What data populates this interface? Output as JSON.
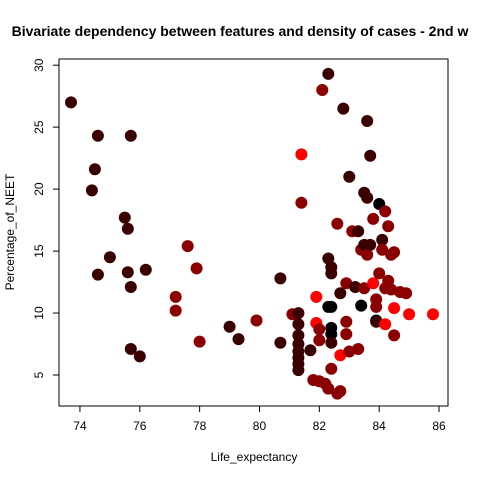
{
  "chart_data": {
    "type": "scatter",
    "title": "Bivariate dependency between features and density of cases -  2nd w",
    "xlabel": "Life_expectancy",
    "ylabel": "Percentage_of_NEET",
    "xlim": [
      73.3,
      86.3
    ],
    "ylim": [
      2.5,
      30.5
    ],
    "x_ticks": [
      "74",
      "76",
      "78",
      "80",
      "82",
      "84",
      "86"
    ],
    "y_ticks": [
      "5",
      "10",
      "15",
      "20",
      "25",
      "30"
    ],
    "grid": false,
    "legend": "none",
    "colors": {
      "dark": "#3a0000",
      "mid": "#8b0000",
      "bright": "#ff0000",
      "black": "#000000"
    },
    "points": [
      {
        "x": 73.7,
        "y": 27.0,
        "c": "dark"
      },
      {
        "x": 74.6,
        "y": 24.3,
        "c": "dark"
      },
      {
        "x": 74.5,
        "y": 21.6,
        "c": "dark"
      },
      {
        "x": 74.4,
        "y": 19.9,
        "c": "dark"
      },
      {
        "x": 74.6,
        "y": 13.1,
        "c": "dark"
      },
      {
        "x": 75.0,
        "y": 14.5,
        "c": "dark"
      },
      {
        "x": 75.5,
        "y": 17.7,
        "c": "dark"
      },
      {
        "x": 75.6,
        "y": 16.8,
        "c": "dark"
      },
      {
        "x": 75.7,
        "y": 24.3,
        "c": "dark"
      },
      {
        "x": 75.6,
        "y": 13.3,
        "c": "dark"
      },
      {
        "x": 75.7,
        "y": 12.1,
        "c": "dark"
      },
      {
        "x": 76.2,
        "y": 13.5,
        "c": "dark"
      },
      {
        "x": 75.7,
        "y": 7.1,
        "c": "dark"
      },
      {
        "x": 76.0,
        "y": 6.5,
        "c": "dark"
      },
      {
        "x": 77.2,
        "y": 11.3,
        "c": "mid"
      },
      {
        "x": 77.2,
        "y": 10.2,
        "c": "mid"
      },
      {
        "x": 77.6,
        "y": 15.4,
        "c": "mid"
      },
      {
        "x": 77.9,
        "y": 13.6,
        "c": "mid"
      },
      {
        "x": 78.0,
        "y": 7.7,
        "c": "mid"
      },
      {
        "x": 79.0,
        "y": 8.9,
        "c": "dark"
      },
      {
        "x": 79.3,
        "y": 7.9,
        "c": "dark"
      },
      {
        "x": 79.9,
        "y": 9.4,
        "c": "mid"
      },
      {
        "x": 80.7,
        "y": 12.8,
        "c": "dark"
      },
      {
        "x": 80.7,
        "y": 7.6,
        "c": "dark"
      },
      {
        "x": 81.1,
        "y": 9.9,
        "c": "mid"
      },
      {
        "x": 81.3,
        "y": 10.0,
        "c": "dark"
      },
      {
        "x": 81.3,
        "y": 9.1,
        "c": "dark"
      },
      {
        "x": 81.3,
        "y": 8.2,
        "c": "dark"
      },
      {
        "x": 81.3,
        "y": 7.5,
        "c": "dark"
      },
      {
        "x": 81.3,
        "y": 6.9,
        "c": "dark"
      },
      {
        "x": 81.3,
        "y": 6.4,
        "c": "dark"
      },
      {
        "x": 81.3,
        "y": 5.9,
        "c": "dark"
      },
      {
        "x": 81.3,
        "y": 5.4,
        "c": "dark"
      },
      {
        "x": 81.4,
        "y": 22.8,
        "c": "bright"
      },
      {
        "x": 81.4,
        "y": 18.9,
        "c": "mid"
      },
      {
        "x": 81.7,
        "y": 7.0,
        "c": "dark"
      },
      {
        "x": 81.8,
        "y": 4.6,
        "c": "mid"
      },
      {
        "x": 81.9,
        "y": 11.3,
        "c": "bright"
      },
      {
        "x": 81.9,
        "y": 9.2,
        "c": "bright"
      },
      {
        "x": 82.0,
        "y": 8.7,
        "c": "mid"
      },
      {
        "x": 82.0,
        "y": 7.8,
        "c": "mid"
      },
      {
        "x": 82.0,
        "y": 4.5,
        "c": "mid"
      },
      {
        "x": 82.1,
        "y": 28.0,
        "c": "mid"
      },
      {
        "x": 82.2,
        "y": 4.3,
        "c": "mid"
      },
      {
        "x": 82.3,
        "y": 29.3,
        "c": "dark"
      },
      {
        "x": 82.3,
        "y": 14.4,
        "c": "dark"
      },
      {
        "x": 82.3,
        "y": 10.5,
        "c": "black"
      },
      {
        "x": 82.3,
        "y": 3.9,
        "c": "mid"
      },
      {
        "x": 82.4,
        "y": 13.7,
        "c": "dark"
      },
      {
        "x": 82.4,
        "y": 13.2,
        "c": "dark"
      },
      {
        "x": 82.4,
        "y": 10.5,
        "c": "black"
      },
      {
        "x": 82.4,
        "y": 8.8,
        "c": "black"
      },
      {
        "x": 82.4,
        "y": 8.3,
        "c": "black"
      },
      {
        "x": 82.4,
        "y": 7.6,
        "c": "dark"
      },
      {
        "x": 82.4,
        "y": 5.5,
        "c": "mid"
      },
      {
        "x": 82.6,
        "y": 17.2,
        "c": "mid"
      },
      {
        "x": 82.6,
        "y": 3.5,
        "c": "mid"
      },
      {
        "x": 82.7,
        "y": 11.6,
        "c": "dark"
      },
      {
        "x": 82.7,
        "y": 6.6,
        "c": "bright"
      },
      {
        "x": 82.7,
        "y": 3.7,
        "c": "mid"
      },
      {
        "x": 82.8,
        "y": 26.5,
        "c": "dark"
      },
      {
        "x": 82.9,
        "y": 12.4,
        "c": "mid"
      },
      {
        "x": 82.9,
        "y": 9.3,
        "c": "mid"
      },
      {
        "x": 82.9,
        "y": 8.3,
        "c": "mid"
      },
      {
        "x": 83.0,
        "y": 21.0,
        "c": "dark"
      },
      {
        "x": 83.0,
        "y": 6.9,
        "c": "mid"
      },
      {
        "x": 83.1,
        "y": 16.6,
        "c": "mid"
      },
      {
        "x": 83.2,
        "y": 12.1,
        "c": "dark"
      },
      {
        "x": 83.3,
        "y": 16.6,
        "c": "dark"
      },
      {
        "x": 83.3,
        "y": 7.1,
        "c": "mid"
      },
      {
        "x": 83.4,
        "y": 15.1,
        "c": "mid"
      },
      {
        "x": 83.4,
        "y": 10.6,
        "c": "black"
      },
      {
        "x": 83.5,
        "y": 19.7,
        "c": "dark"
      },
      {
        "x": 83.5,
        "y": 15.5,
        "c": "dark"
      },
      {
        "x": 83.5,
        "y": 12.0,
        "c": "mid"
      },
      {
        "x": 83.6,
        "y": 25.5,
        "c": "dark"
      },
      {
        "x": 83.6,
        "y": 19.3,
        "c": "dark"
      },
      {
        "x": 83.6,
        "y": 14.7,
        "c": "mid"
      },
      {
        "x": 83.7,
        "y": 22.7,
        "c": "dark"
      },
      {
        "x": 83.7,
        "y": 15.5,
        "c": "dark"
      },
      {
        "x": 83.8,
        "y": 17.6,
        "c": "mid"
      },
      {
        "x": 83.8,
        "y": 12.4,
        "c": "bright"
      },
      {
        "x": 83.9,
        "y": 11.1,
        "c": "mid"
      },
      {
        "x": 83.9,
        "y": 10.5,
        "c": "mid"
      },
      {
        "x": 83.9,
        "y": 9.4,
        "c": "black"
      },
      {
        "x": 83.9,
        "y": 9.3,
        "c": "dark"
      },
      {
        "x": 84.0,
        "y": 18.8,
        "c": "black"
      },
      {
        "x": 84.0,
        "y": 13.2,
        "c": "mid"
      },
      {
        "x": 84.1,
        "y": 15.9,
        "c": "dark"
      },
      {
        "x": 84.1,
        "y": 15.1,
        "c": "mid"
      },
      {
        "x": 84.2,
        "y": 18.2,
        "c": "mid"
      },
      {
        "x": 84.2,
        "y": 12.0,
        "c": "mid"
      },
      {
        "x": 84.2,
        "y": 9.1,
        "c": "bright"
      },
      {
        "x": 84.3,
        "y": 17.0,
        "c": "mid"
      },
      {
        "x": 84.3,
        "y": 12.6,
        "c": "mid"
      },
      {
        "x": 84.4,
        "y": 14.7,
        "c": "mid"
      },
      {
        "x": 84.4,
        "y": 11.9,
        "c": "mid"
      },
      {
        "x": 84.5,
        "y": 14.9,
        "c": "mid"
      },
      {
        "x": 84.5,
        "y": 10.4,
        "c": "bright"
      },
      {
        "x": 84.5,
        "y": 8.2,
        "c": "mid"
      },
      {
        "x": 84.7,
        "y": 11.7,
        "c": "mid"
      },
      {
        "x": 84.9,
        "y": 11.6,
        "c": "mid"
      },
      {
        "x": 85.0,
        "y": 9.9,
        "c": "bright"
      },
      {
        "x": 85.8,
        "y": 9.9,
        "c": "bright"
      }
    ]
  }
}
